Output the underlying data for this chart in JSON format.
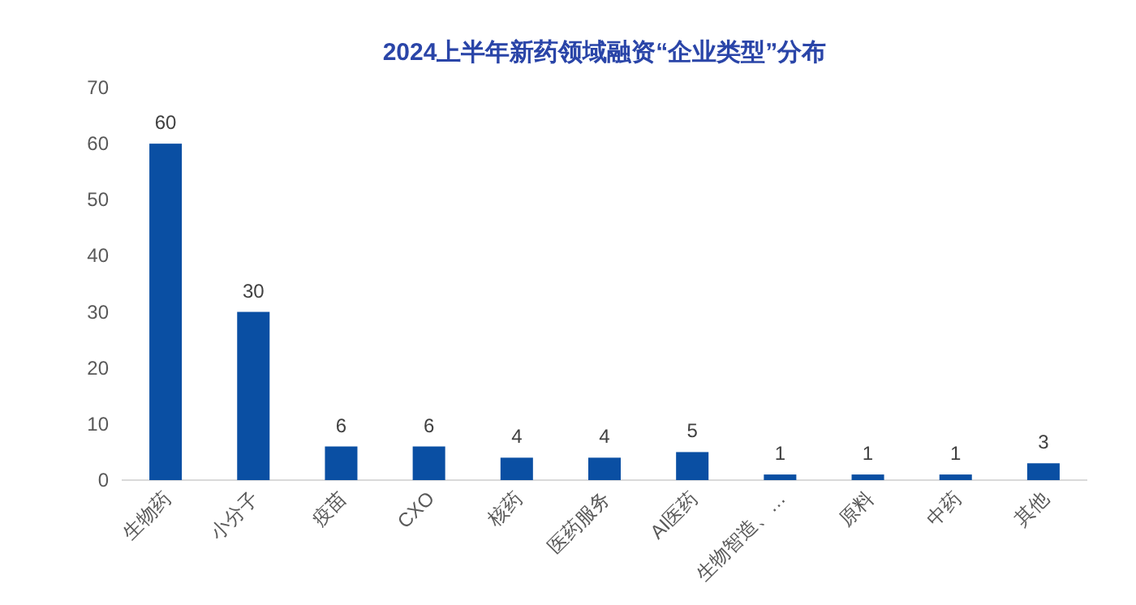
{
  "chart_data": {
    "type": "bar",
    "title": "2024上半年新药领域融资“企业类型”分布",
    "categories": [
      "生物药",
      "小分子",
      "疫苗",
      "CXO",
      "核药",
      "医药服务",
      "AI医药",
      "生物智造、…",
      "原料",
      "中药",
      "其他"
    ],
    "values": [
      60,
      30,
      6,
      6,
      4,
      4,
      5,
      1,
      1,
      1,
      3
    ],
    "color": "#0a4fa3",
    "ylim": [
      0,
      70
    ],
    "yticks": [
      0,
      10,
      20,
      30,
      40,
      50,
      60,
      70
    ],
    "grid": false,
    "data_labels": true
  }
}
